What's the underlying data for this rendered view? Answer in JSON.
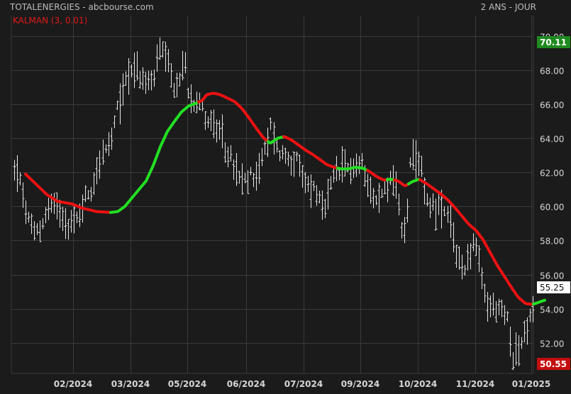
{
  "header": {
    "title": "TOTALENERGIES - abcbourse.com",
    "indicator": "KALMAN (3, 0.01)",
    "period": "2 ANS - JOUR"
  },
  "colors": {
    "background": "#1b1b1b",
    "grid": "#3a3a3a",
    "price_bars": "#e6e6e6",
    "kalman_up": "#22e022",
    "kalman_down": "#ee1111",
    "badge_high": "#1f8a1f",
    "badge_low": "#c40e0e",
    "badge_last": "#ffffff",
    "title_text": "#bdbdbd",
    "indicator_text": "#e01818"
  },
  "badges": {
    "high": "70.11",
    "last": "55.25",
    "low": "50.55"
  },
  "chart_data": {
    "type": "ohlc",
    "y_ticks": [
      "52.00",
      "54.00",
      "56.00",
      "58.00",
      "60.00",
      "62.00",
      "64.00",
      "66.00",
      "68.00",
      "70.00"
    ],
    "x_ticks": [
      "02/2024",
      "03/2024",
      "05/2024",
      "06/2024",
      "07/2024",
      "09/2024",
      "10/2024",
      "11/2024",
      "01/2025"
    ],
    "ylim": [
      50.2,
      71.2
    ],
    "price_anchors": [
      [
        0,
        61.8
      ],
      [
        8,
        62.3
      ],
      [
        18,
        60.2
      ],
      [
        30,
        58.3
      ],
      [
        42,
        58.8
      ],
      [
        55,
        60.2
      ],
      [
        70,
        59.8
      ],
      [
        82,
        58.9
      ],
      [
        93,
        59.2
      ],
      [
        105,
        60.6
      ],
      [
        115,
        61.1
      ],
      [
        123,
        62.7
      ],
      [
        131,
        63.1
      ],
      [
        140,
        63.6
      ],
      [
        150,
        65.7
      ],
      [
        160,
        67.3
      ],
      [
        170,
        68.3
      ],
      [
        180,
        67.7
      ],
      [
        190,
        67.1
      ],
      [
        200,
        67.5
      ],
      [
        210,
        69.2
      ],
      [
        220,
        68.3
      ],
      [
        226,
        67.4
      ],
      [
        232,
        66.7
      ],
      [
        238,
        67.5
      ],
      [
        244,
        68.7
      ],
      [
        250,
        66.8
      ],
      [
        257,
        66.3
      ],
      [
        264,
        66.5
      ],
      [
        272,
        65.4
      ],
      [
        282,
        64.9
      ],
      [
        291,
        64.4
      ],
      [
        300,
        63.6
      ],
      [
        310,
        62.7
      ],
      [
        320,
        61.6
      ],
      [
        330,
        61.4
      ],
      [
        340,
        61.9
      ],
      [
        350,
        62.2
      ],
      [
        360,
        63.6
      ],
      [
        368,
        65.1
      ],
      [
        374,
        63.4
      ],
      [
        382,
        63.1
      ],
      [
        392,
        62.9
      ],
      [
        402,
        62.6
      ],
      [
        412,
        61.5
      ],
      [
        420,
        61.2
      ],
      [
        430,
        61.0
      ],
      [
        440,
        59.4
      ],
      [
        447,
        60.6
      ],
      [
        455,
        61.7
      ],
      [
        463,
        62.1
      ],
      [
        472,
        62.2
      ],
      [
        480,
        62.4
      ],
      [
        488,
        62.3
      ],
      [
        497,
        62.5
      ],
      [
        506,
        61.1
      ],
      [
        515,
        60.2
      ],
      [
        525,
        60.9
      ],
      [
        535,
        61.7
      ],
      [
        542,
        61.5
      ],
      [
        549,
        58.8
      ],
      [
        556,
        58.6
      ],
      [
        563,
        62.6
      ],
      [
        571,
        62.5
      ],
      [
        580,
        62.1
      ],
      [
        587,
        60.2
      ],
      [
        597,
        60.1
      ],
      [
        607,
        59.6
      ],
      [
        617,
        59.3
      ],
      [
        627,
        57.4
      ],
      [
        636,
        56.3
      ],
      [
        645,
        57.1
      ],
      [
        654,
        57.9
      ],
      [
        661,
        56.2
      ],
      [
        670,
        54.2
      ],
      [
        680,
        54.1
      ],
      [
        690,
        53.9
      ],
      [
        700,
        53.4
      ],
      [
        708,
        51.2
      ],
      [
        716,
        51.7
      ],
      [
        724,
        52.4
      ],
      [
        733,
        53.6
      ],
      [
        742,
        54.6
      ],
      [
        750,
        55.3
      ]
    ],
    "kalman_anchors": [
      [
        20,
        61.9
      ],
      [
        35,
        61.3
      ],
      [
        50,
        60.7
      ],
      [
        65,
        60.3
      ],
      [
        85,
        60.15
      ],
      [
        100,
        59.9
      ],
      [
        120,
        59.7
      ],
      [
        140,
        59.65
      ],
      [
        150,
        59.7
      ],
      [
        160,
        60.0
      ],
      [
        170,
        60.5
      ],
      [
        180,
        61.0
      ],
      [
        190,
        61.5
      ],
      [
        200,
        62.4
      ],
      [
        210,
        63.5
      ],
      [
        220,
        64.4
      ],
      [
        230,
        65.0
      ],
      [
        240,
        65.55
      ],
      [
        250,
        65.9
      ],
      [
        260,
        66.05
      ],
      [
        270,
        66.25
      ],
      [
        275,
        66.55
      ],
      [
        285,
        66.65
      ],
      [
        295,
        66.55
      ],
      [
        305,
        66.35
      ],
      [
        315,
        66.15
      ],
      [
        325,
        65.75
      ],
      [
        335,
        65.2
      ],
      [
        345,
        64.6
      ],
      [
        355,
        64.05
      ],
      [
        365,
        63.7
      ],
      [
        375,
        64.0
      ],
      [
        385,
        64.1
      ],
      [
        395,
        63.9
      ],
      [
        405,
        63.6
      ],
      [
        415,
        63.3
      ],
      [
        425,
        63.05
      ],
      [
        435,
        62.75
      ],
      [
        445,
        62.45
      ],
      [
        455,
        62.3
      ],
      [
        465,
        62.2
      ],
      [
        475,
        62.2
      ],
      [
        485,
        62.3
      ],
      [
        495,
        62.25
      ],
      [
        505,
        62.05
      ],
      [
        515,
        61.75
      ],
      [
        525,
        61.55
      ],
      [
        535,
        61.6
      ],
      [
        545,
        61.5
      ],
      [
        555,
        61.2
      ],
      [
        565,
        61.45
      ],
      [
        575,
        61.6
      ],
      [
        585,
        61.35
      ],
      [
        595,
        61.05
      ],
      [
        605,
        60.75
      ],
      [
        615,
        60.4
      ],
      [
        625,
        59.95
      ],
      [
        635,
        59.45
      ],
      [
        645,
        58.95
      ],
      [
        655,
        58.6
      ],
      [
        665,
        58.05
      ],
      [
        675,
        57.3
      ],
      [
        685,
        56.55
      ],
      [
        695,
        55.9
      ],
      [
        705,
        55.25
      ],
      [
        715,
        54.65
      ],
      [
        725,
        54.3
      ],
      [
        735,
        54.25
      ],
      [
        745,
        54.4
      ],
      [
        752,
        54.5
      ]
    ],
    "kalman_up_ranges": [
      [
        140,
        262
      ],
      [
        362,
        382
      ],
      [
        460,
        500
      ],
      [
        530,
        538
      ],
      [
        560,
        575
      ],
      [
        735,
        752
      ]
    ],
    "high": 70.11,
    "low": 50.55,
    "last": 55.25
  }
}
